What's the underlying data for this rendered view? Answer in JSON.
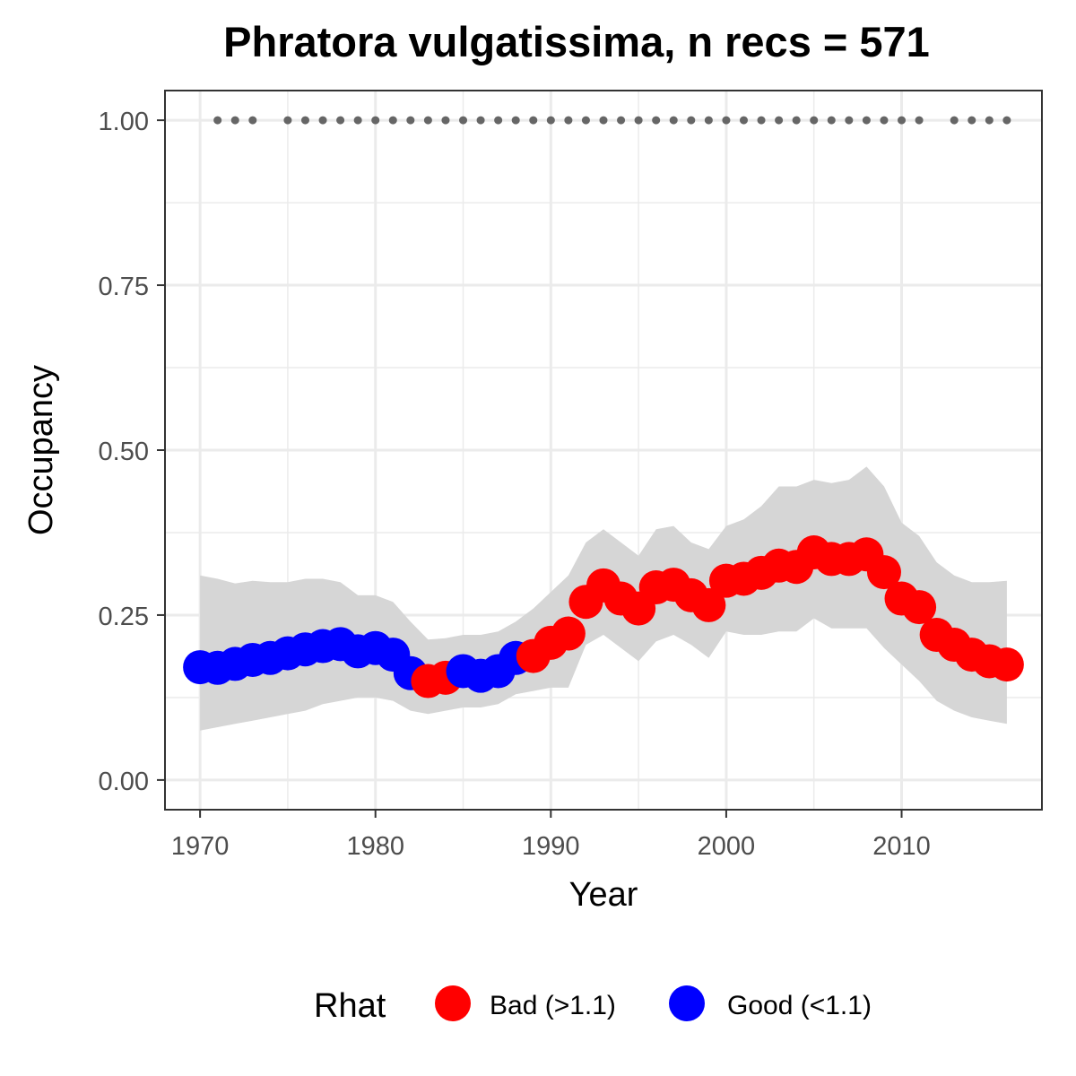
{
  "chart_data": {
    "type": "line",
    "title": "Phratora vulgatissima, n recs = 571",
    "xlabel": "Year",
    "ylabel": "Occupancy",
    "xlim": [
      1968,
      2018
    ],
    "ylim": [
      -0.045,
      1.045
    ],
    "x_ticks": [
      1970,
      1980,
      1990,
      2000,
      2010
    ],
    "x_tick_labels": [
      "1970",
      "1980",
      "1990",
      "2000",
      "2010"
    ],
    "y_ticks": [
      0,
      0.25,
      0.5,
      0.75,
      1
    ],
    "y_tick_labels": [
      "0.00",
      "0.25",
      "0.50",
      "0.75",
      "1.00"
    ],
    "grid": true,
    "legend": {
      "title": "Rhat",
      "position": "bottom",
      "entries": [
        {
          "label": "Bad (>1.1)",
          "color": "#ff0000"
        },
        {
          "label": "Good (<1.1)",
          "color": "#0000ff"
        }
      ]
    },
    "colors": {
      "bad": "#ff0000",
      "good": "#0000ff",
      "band": "#d6d6d6",
      "records": "#666666"
    },
    "series": [
      {
        "type": "points",
        "x": [
          1970,
          1971,
          1972,
          1973,
          1974,
          1975,
          1976,
          1977,
          1978,
          1979,
          1980,
          1981,
          1982,
          1983,
          1984,
          1985,
          1986,
          1987,
          1988,
          1989,
          1990,
          1991,
          1992,
          1993,
          1994,
          1995,
          1996,
          1997,
          1998,
          1999,
          2000,
          2001,
          2002,
          2003,
          2004,
          2005,
          2006,
          2007,
          2008,
          2009,
          2010,
          2011,
          2012,
          2013,
          2014,
          2015,
          2016
        ],
        "y": [
          0.171,
          0.17,
          0.176,
          0.182,
          0.185,
          0.192,
          0.198,
          0.203,
          0.206,
          0.195,
          0.2,
          0.19,
          0.162,
          0.15,
          0.155,
          0.165,
          0.158,
          0.165,
          0.185,
          0.188,
          0.208,
          0.222,
          0.27,
          0.295,
          0.275,
          0.26,
          0.292,
          0.296,
          0.28,
          0.265,
          0.302,
          0.305,
          0.314,
          0.325,
          0.323,
          0.345,
          0.335,
          0.335,
          0.342,
          0.315,
          0.275,
          0.262,
          0.22,
          0.205,
          0.19,
          0.18,
          0.175
        ],
        "rhat": [
          "Good",
          "Good",
          "Good",
          "Good",
          "Good",
          "Good",
          "Good",
          "Good",
          "Good",
          "Good",
          "Good",
          "Good",
          "Good",
          "Bad",
          "Bad",
          "Good",
          "Good",
          "Good",
          "Good",
          "Bad",
          "Bad",
          "Bad",
          "Bad",
          "Bad",
          "Bad",
          "Bad",
          "Bad",
          "Bad",
          "Bad",
          "Bad",
          "Bad",
          "Bad",
          "Bad",
          "Bad",
          "Bad",
          "Bad",
          "Bad",
          "Bad",
          "Bad",
          "Bad",
          "Bad",
          "Bad",
          "Bad",
          "Bad",
          "Bad",
          "Bad",
          "Bad"
        ]
      },
      {
        "type": "ribbon",
        "x": [
          1970,
          1971,
          1972,
          1973,
          1974,
          1975,
          1976,
          1977,
          1978,
          1979,
          1980,
          1981,
          1982,
          1983,
          1984,
          1985,
          1986,
          1987,
          1988,
          1989,
          1990,
          1991,
          1992,
          1993,
          1994,
          1995,
          1996,
          1997,
          1998,
          1999,
          2000,
          2001,
          2002,
          2003,
          2004,
          2005,
          2006,
          2007,
          2008,
          2009,
          2010,
          2011,
          2012,
          2013,
          2014,
          2015,
          2016
        ],
        "upper": [
          0.31,
          0.305,
          0.298,
          0.302,
          0.3,
          0.3,
          0.305,
          0.305,
          0.3,
          0.28,
          0.28,
          0.27,
          0.24,
          0.213,
          0.215,
          0.22,
          0.22,
          0.225,
          0.24,
          0.26,
          0.285,
          0.31,
          0.36,
          0.38,
          0.36,
          0.34,
          0.38,
          0.385,
          0.36,
          0.35,
          0.385,
          0.395,
          0.415,
          0.445,
          0.445,
          0.455,
          0.45,
          0.455,
          0.475,
          0.445,
          0.39,
          0.37,
          0.33,
          0.31,
          0.3,
          0.3,
          0.302
        ],
        "lower": [
          0.075,
          0.08,
          0.085,
          0.09,
          0.095,
          0.1,
          0.105,
          0.115,
          0.12,
          0.125,
          0.125,
          0.12,
          0.105,
          0.1,
          0.105,
          0.11,
          0.11,
          0.115,
          0.13,
          0.135,
          0.14,
          0.14,
          0.205,
          0.22,
          0.2,
          0.18,
          0.21,
          0.22,
          0.205,
          0.185,
          0.225,
          0.22,
          0.22,
          0.225,
          0.225,
          0.245,
          0.23,
          0.23,
          0.23,
          0.2,
          0.175,
          0.15,
          0.12,
          0.105,
          0.095,
          0.09,
          0.085
        ]
      },
      {
        "type": "records",
        "x": [
          1971,
          1972,
          1973,
          1975,
          1976,
          1977,
          1978,
          1979,
          1980,
          1981,
          1982,
          1983,
          1984,
          1985,
          1986,
          1987,
          1988,
          1989,
          1990,
          1991,
          1992,
          1993,
          1994,
          1995,
          1996,
          1997,
          1998,
          1999,
          2000,
          2001,
          2002,
          2003,
          2004,
          2005,
          2006,
          2007,
          2008,
          2009,
          2010,
          2011,
          2013,
          2014,
          2015,
          2016
        ],
        "y": 1
      }
    ]
  }
}
